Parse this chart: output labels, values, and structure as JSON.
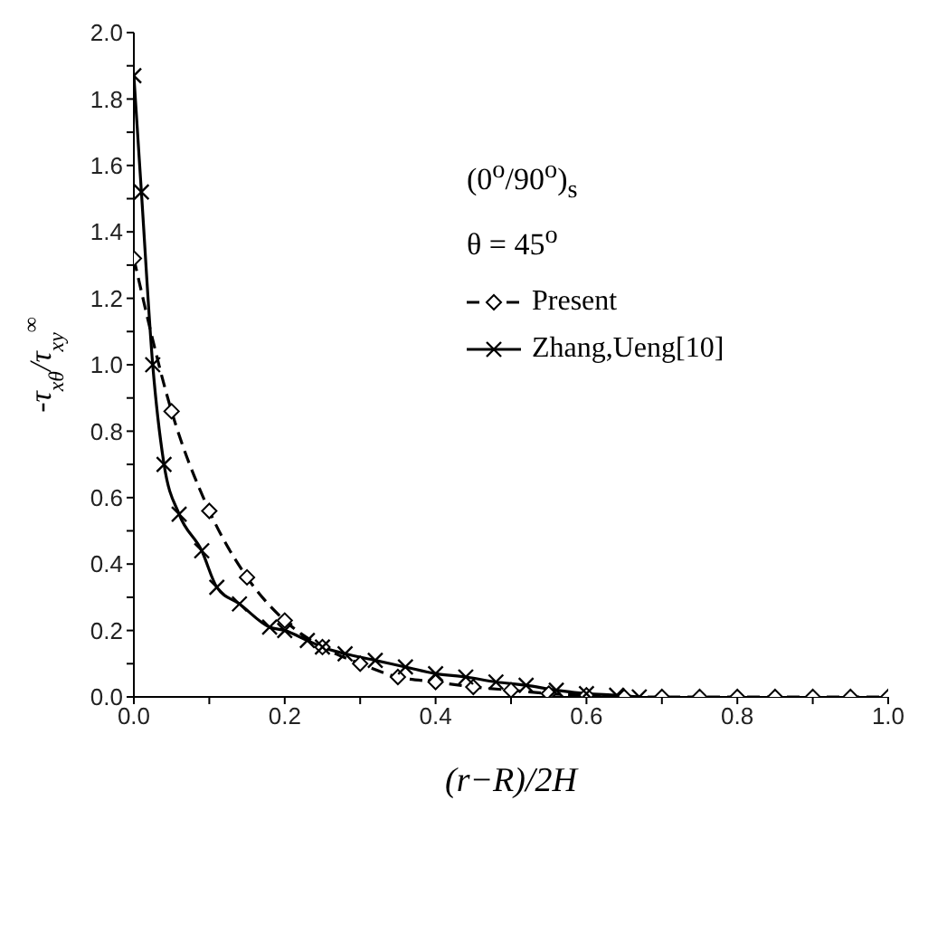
{
  "chart_data": {
    "type": "line",
    "xlabel": "(r−R)/2H",
    "ylabel": "-τ$_{xθ}$/τ$_{xy}$$^{∞}$",
    "annotations": [
      "(0$^{o}$/90$^{o}$)$_{s}$",
      "θ = 45$^{o}$"
    ],
    "xlim": [
      0,
      1
    ],
    "ylim": [
      0,
      2
    ],
    "xticks": [
      {
        "value": 0,
        "label": "0.0"
      },
      {
        "value": 0.1,
        "label": null
      },
      {
        "value": 0.2,
        "label": "0.2"
      },
      {
        "value": 0.3,
        "label": null
      },
      {
        "value": 0.4,
        "label": "0.4"
      },
      {
        "value": 0.5,
        "label": null
      },
      {
        "value": 0.6,
        "label": "0.6"
      },
      {
        "value": 0.7,
        "label": null
      },
      {
        "value": 0.8,
        "label": "0.8"
      },
      {
        "value": 0.9,
        "label": null
      },
      {
        "value": 1,
        "label": "1.0"
      }
    ],
    "yticks": [
      {
        "value": 0,
        "label": "0.0"
      },
      {
        "value": 0.1,
        "label": null
      },
      {
        "value": 0.2,
        "label": "0.2"
      },
      {
        "value": 0.3,
        "label": null
      },
      {
        "value": 0.4,
        "label": "0.4"
      },
      {
        "value": 0.5,
        "label": null
      },
      {
        "value": 0.6,
        "label": "0.6"
      },
      {
        "value": 0.7,
        "label": null
      },
      {
        "value": 0.8,
        "label": "0.8"
      },
      {
        "value": 0.9,
        "label": null
      },
      {
        "value": 1,
        "label": "1.0"
      },
      {
        "value": 1.1,
        "label": null
      },
      {
        "value": 1.2,
        "label": "1.2"
      },
      {
        "value": 1.3,
        "label": null
      },
      {
        "value": 1.4,
        "label": "1.4"
      },
      {
        "value": 1.5,
        "label": null
      },
      {
        "value": 1.6,
        "label": "1.6"
      },
      {
        "value": 1.7,
        "label": null
      },
      {
        "value": 1.8,
        "label": "1.8"
      },
      {
        "value": 1.9,
        "label": null
      },
      {
        "value": 2,
        "label": "2.0"
      }
    ],
    "legend": "top right",
    "series": [
      {
        "name": "Present",
        "color": "#000000",
        "marker": "diamond",
        "line_style": "dashed",
        "x": [
          0,
          0.05,
          0.1,
          0.15,
          0.2,
          0.25,
          0.3,
          0.35,
          0.4,
          0.45,
          0.5,
          0.55,
          0.6,
          0.65,
          0.7,
          0.75,
          0.8,
          0.85,
          0.9,
          0.95,
          1
        ],
        "values": [
          1.32,
          0.86,
          0.56,
          0.36,
          0.23,
          0.15,
          0.1,
          0.06,
          0.045,
          0.03,
          0.02,
          0.01,
          0.005,
          0,
          0,
          0,
          0,
          0,
          0,
          0,
          0
        ]
      },
      {
        "name": "Zhang,Ueng[10]",
        "color": "#000000",
        "marker": "cross",
        "line_style": "solid",
        "x": [
          0,
          0.01,
          0.025,
          0.04,
          0.06,
          0.09,
          0.11,
          0.14,
          0.18,
          0.2,
          0.23,
          0.25,
          0.28,
          0.32,
          0.36,
          0.4,
          0.44,
          0.48,
          0.52,
          0.56,
          0.6,
          0.64,
          0.67
        ],
        "values": [
          1.87,
          1.52,
          1.0,
          0.7,
          0.55,
          0.44,
          0.33,
          0.28,
          0.21,
          0.2,
          0.17,
          0.15,
          0.13,
          0.11,
          0.09,
          0.07,
          0.06,
          0.045,
          0.035,
          0.02,
          0.01,
          0.005,
          0
        ]
      }
    ]
  }
}
